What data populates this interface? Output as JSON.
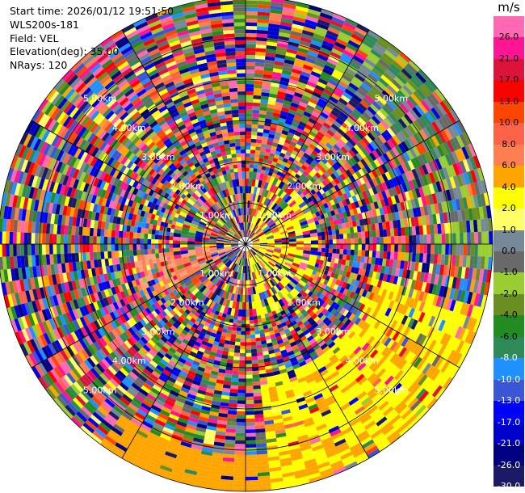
{
  "info": {
    "start_time": "Start time: 2026/01/12 19:51:50",
    "instrument": "WLS200s-181",
    "field": "Field: VEL",
    "elevation": "Elevation(deg): 35.00",
    "nrays": "NRays: 120"
  },
  "chart_data": {
    "type": "heatmap",
    "projection": "polar (PPI)",
    "field": "VEL",
    "nrays": 120,
    "elevation_deg": 35.0,
    "range_ring_labels": [
      "1.00km",
      "2.00km",
      "3.00km",
      "4.00km",
      "5.00km"
    ],
    "range_ring_km": [
      1,
      2,
      3,
      4,
      5
    ],
    "max_range_km": 6.0,
    "colorbar": {
      "unit": "m/s",
      "tick_labels": [
        "26.0",
        "21.0",
        "17.0",
        "13.0",
        "10.0",
        "8.0",
        "6.0",
        "4.0",
        "2.0",
        "1.0",
        "0.0",
        "-1.0",
        "-2.0",
        "-4.0",
        "-6.0",
        "-8.0",
        "-10.0",
        "-13.0",
        "-17.0",
        "-21.0",
        "-26.0",
        "-30.0"
      ],
      "bins": [
        {
          "min": -30,
          "max": -26,
          "color": "#1a1a66"
        },
        {
          "min": -26,
          "max": -21,
          "color": "#000080"
        },
        {
          "min": -21,
          "max": -17,
          "color": "#0000cd"
        },
        {
          "min": -17,
          "max": -13,
          "color": "#0000ff"
        },
        {
          "min": -13,
          "max": -10,
          "color": "#3a55d6"
        },
        {
          "min": -10,
          "max": -8,
          "color": "#1e90ff"
        },
        {
          "min": -8,
          "max": -6,
          "color": "#2e8b57"
        },
        {
          "min": -6,
          "max": -4,
          "color": "#228b22"
        },
        {
          "min": -4,
          "max": -2,
          "color": "#6b8e23"
        },
        {
          "min": -2,
          "max": -1,
          "color": "#9acd32"
        },
        {
          "min": -1,
          "max": 0,
          "color": "#696969"
        },
        {
          "min": 0,
          "max": 1,
          "color": "#778899"
        },
        {
          "min": 1,
          "max": 2,
          "color": "#ffff66"
        },
        {
          "min": 2,
          "max": 4,
          "color": "#ffff00"
        },
        {
          "min": 4,
          "max": 6,
          "color": "#ffa500"
        },
        {
          "min": 6,
          "max": 8,
          "color": "#ff7f50"
        },
        {
          "min": 8,
          "max": 10,
          "color": "#ff6347"
        },
        {
          "min": 10,
          "max": 13,
          "color": "#ff4500"
        },
        {
          "min": 13,
          "max": 17,
          "color": "#ff0000"
        },
        {
          "min": 17,
          "max": 21,
          "color": "#dc143c"
        },
        {
          "min": 21,
          "max": 26,
          "color": "#ff1493"
        },
        {
          "min": 26,
          "max": 30,
          "color": "#ff69b4"
        }
      ]
    }
  }
}
